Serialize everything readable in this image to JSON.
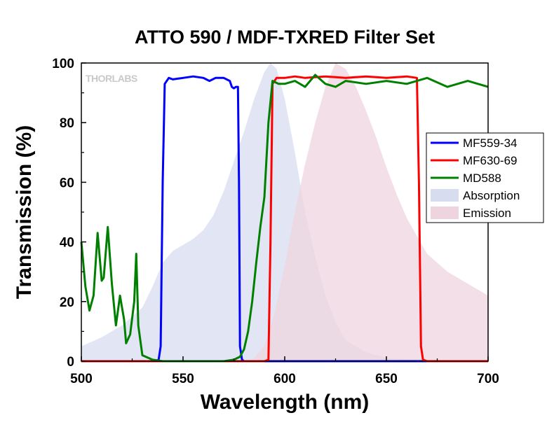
{
  "chart_data": {
    "type": "line",
    "title": "ATTO 590 / MDF-TXRED Filter Set",
    "xlabel": "Wavelength (nm)",
    "ylabel": "Transmission (%)",
    "xlim": [
      500,
      700
    ],
    "ylim": [
      0,
      100
    ],
    "xticks": [
      500,
      550,
      600,
      650,
      700
    ],
    "yticks": [
      0,
      20,
      40,
      60,
      80,
      100
    ],
    "grid": false,
    "legend_position": "right",
    "watermark": "THORLABS",
    "series": [
      {
        "name": "MF559-34",
        "kind": "line",
        "color": "#0000ff",
        "x": [
          500,
          536,
          538,
          539,
          540,
          541,
          543,
          545,
          550,
          555,
          560,
          563,
          566,
          570,
          573,
          574,
          575,
          576,
          577,
          577.5,
          578,
          579,
          580,
          590,
          600,
          700
        ],
        "y": [
          0,
          0,
          0.5,
          5,
          60,
          93,
          95,
          94.5,
          95,
          95.5,
          95,
          94,
          95,
          95,
          94,
          92,
          91.5,
          92,
          92,
          60,
          5,
          0.5,
          0,
          0,
          0,
          0
        ]
      },
      {
        "name": "MF630-69",
        "kind": "line",
        "color": "#ff0000",
        "x": [
          500,
          590,
          592,
          593,
          594,
          596,
          600,
          605,
          610,
          620,
          630,
          640,
          650,
          660,
          665,
          666,
          667,
          668,
          670,
          700
        ],
        "y": [
          0,
          0,
          0.5,
          40,
          93,
          95,
          95,
          95.5,
          95,
          95.5,
          95,
          95.5,
          95,
          95.5,
          95,
          60,
          5,
          0.5,
          0,
          0
        ]
      },
      {
        "name": "MD588",
        "kind": "line",
        "color": "#008000",
        "x": [
          500,
          502,
          504,
          506,
          508,
          510,
          511,
          513,
          515,
          517,
          519,
          521,
          522,
          524,
          526,
          527,
          528,
          530,
          535,
          540,
          545,
          555,
          565,
          570,
          575,
          578,
          580,
          582,
          584,
          586,
          588,
          590,
          592,
          594,
          597,
          600,
          605,
          610,
          615,
          620,
          625,
          630,
          640,
          650,
          660,
          670,
          680,
          690,
          700
        ],
        "y": [
          40,
          25,
          17,
          22,
          43,
          27,
          28,
          45,
          26,
          12,
          22,
          14,
          6,
          9,
          20,
          36,
          12,
          2,
          0.5,
          0,
          0,
          0,
          0,
          0,
          0.5,
          1.5,
          4,
          10,
          20,
          33,
          45,
          55,
          80,
          94,
          93,
          93,
          94,
          92,
          96,
          93,
          92,
          94,
          93,
          94,
          93,
          95,
          92,
          94,
          92
        ]
      },
      {
        "name": "Absorption",
        "kind": "area",
        "color": "#d8dcef",
        "x": [
          500,
          510,
          520,
          530,
          535,
          540,
          545,
          550,
          555,
          560,
          565,
          570,
          575,
          580,
          585,
          590,
          593,
          596,
          600,
          605,
          610,
          615,
          620,
          625,
          630,
          640,
          650,
          700
        ],
        "y": [
          5,
          8,
          12,
          18,
          25,
          33,
          37,
          39,
          41,
          44,
          49,
          57,
          67,
          77,
          88,
          97,
          100,
          98,
          88,
          70,
          50,
          35,
          22,
          13,
          7,
          3,
          1,
          0
        ]
      },
      {
        "name": "Emission",
        "kind": "area",
        "color": "#edd4df",
        "x": [
          500,
          580,
          585,
          590,
          595,
          600,
          605,
          610,
          615,
          620,
          625,
          630,
          635,
          640,
          645,
          650,
          655,
          660,
          665,
          670,
          680,
          690,
          700
        ],
        "y": [
          0,
          0,
          1,
          5,
          16,
          32,
          50,
          66,
          80,
          92,
          100,
          98,
          92,
          84,
          75,
          65,
          56,
          48,
          42,
          36,
          30,
          26,
          22
        ]
      }
    ]
  }
}
